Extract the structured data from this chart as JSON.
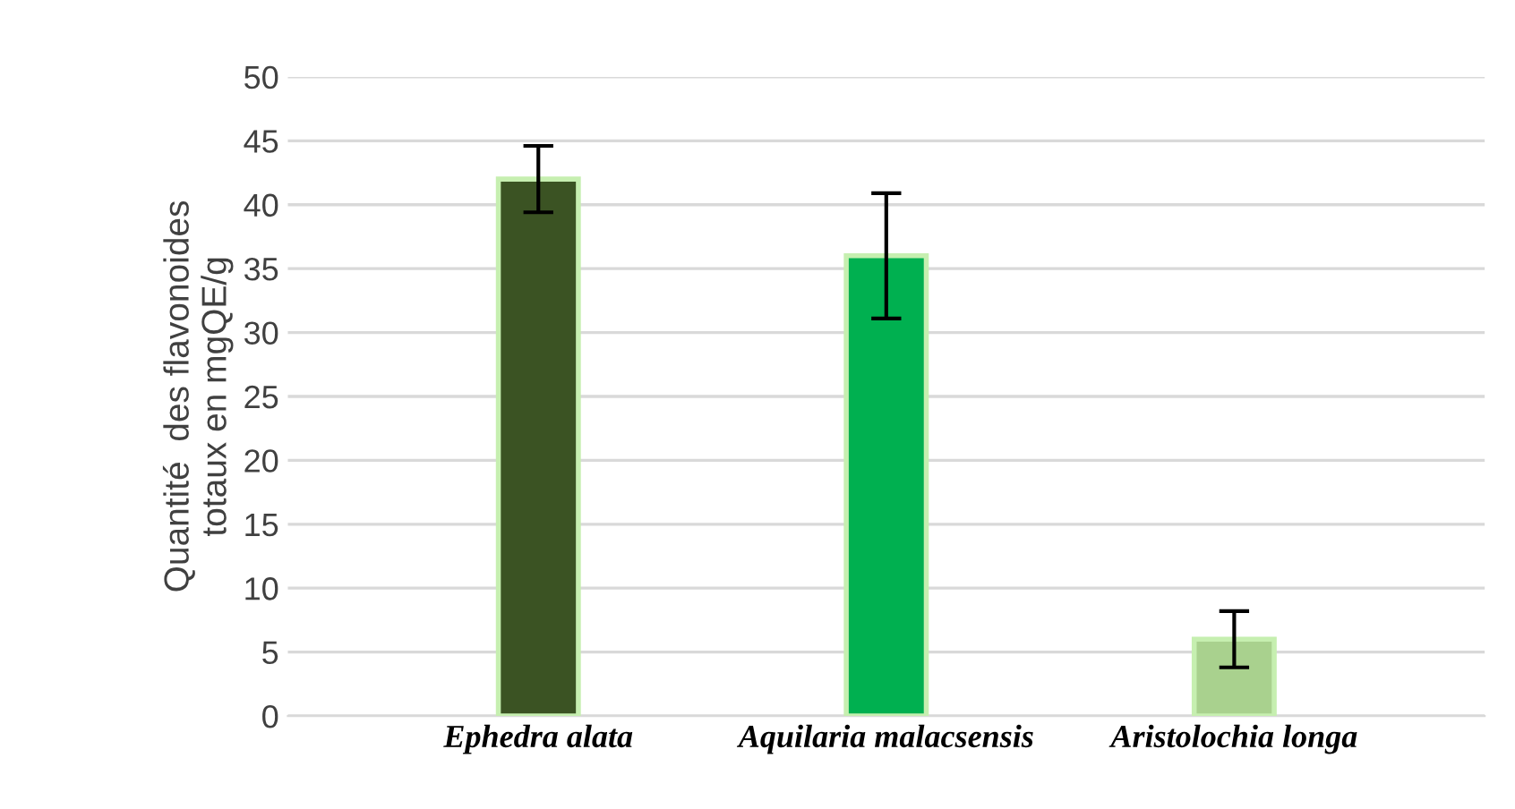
{
  "chart_data": {
    "type": "bar",
    "ylabel": "Quantité  des flavonoides\ntotaux en mgQE/g",
    "categories": [
      "Ephedra alata",
      "Aquilaria malacsensis",
      "Aristolochia longa"
    ],
    "values": [
      42,
      36,
      6
    ],
    "errors": [
      2.6,
      4.9,
      2.2
    ],
    "colors": [
      "#3b5323",
      "#00b050",
      "#a9d18e"
    ],
    "ylim": [
      0,
      50
    ],
    "yticks": [
      0,
      5,
      10,
      15,
      20,
      25,
      30,
      35,
      40,
      45,
      50
    ],
    "grid": "y"
  }
}
